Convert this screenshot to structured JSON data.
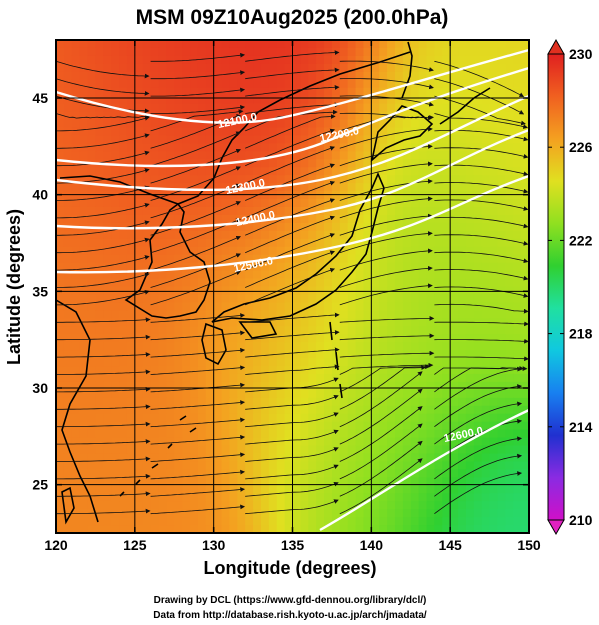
{
  "title": "MSM 09Z10Aug2025 (200.0hPa)",
  "xlabel": "Longitude (degrees)",
  "ylabel": "Latitude  (degrees)",
  "x_ticks": [
    "120",
    "125",
    "130",
    "135",
    "140",
    "145",
    "150"
  ],
  "y_ticks": [
    "25",
    "30",
    "35",
    "40",
    "45"
  ],
  "colorbar": {
    "ticks": [
      "230",
      "226",
      "222",
      "218",
      "214",
      "210"
    ],
    "min": 210,
    "max": 230,
    "colors": [
      "#d010c8",
      "#8a2be2",
      "#2030d0",
      "#1880f0",
      "#10c8e0",
      "#20e0a0",
      "#30d030",
      "#90e020",
      "#e0e020",
      "#f4a020",
      "#f06020",
      "#e02020"
    ]
  },
  "contours": [
    {
      "label": "12100.0"
    },
    {
      "label": "12200.0"
    },
    {
      "label": "12300.0"
    },
    {
      "label": "12400.0"
    },
    {
      "label": "12500.0"
    },
    {
      "label": "12600.0"
    }
  ],
  "credits": {
    "line1": "Drawing by DCL (https://www.gfd-dennou.org/library/dcl/)",
    "line2": "Data from http://database.rish.kyoto-u.ac.jp/arch/jmadata/"
  },
  "chart_data": {
    "type": "heatmap",
    "title": "MSM 09Z10Aug2025 (200.0hPa)",
    "xlabel": "Longitude (degrees)",
    "ylabel": "Latitude  (degrees)",
    "xlim": [
      120,
      150
    ],
    "ylim": [
      22.5,
      48
    ],
    "color_range": [
      210,
      230
    ],
    "colorbar_ticks": [
      210,
      214,
      218,
      222,
      226,
      230
    ],
    "contour_levels": [
      12100,
      12200,
      12300,
      12400,
      12500,
      12600
    ],
    "overlay": "wind streamlines with arrows",
    "grid": "on"
  }
}
